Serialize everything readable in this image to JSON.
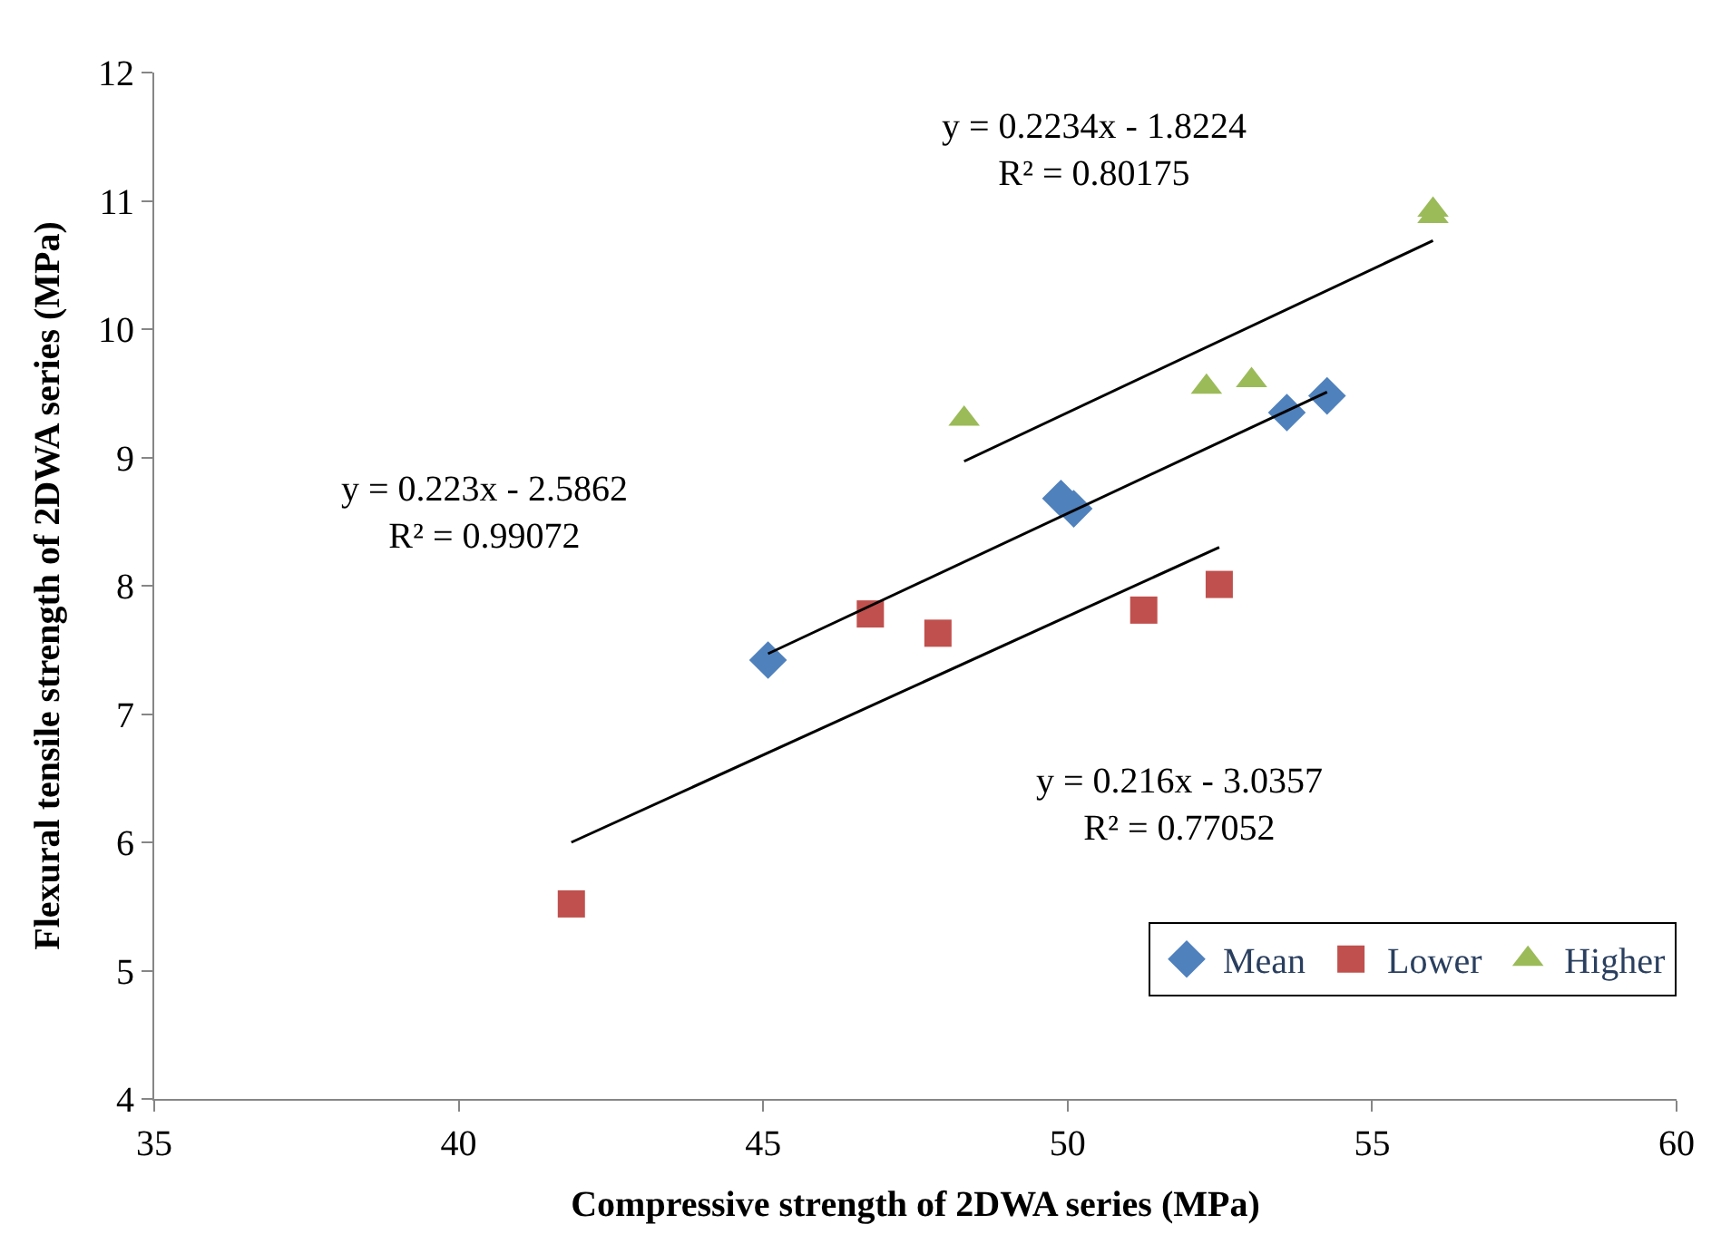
{
  "chart_data": {
    "type": "scatter",
    "xlabel": "Compressive strength of 2DWA series (MPa)",
    "ylabel": "Flexural tensile strength of 2DWA series (MPa)",
    "xlim": [
      35,
      60
    ],
    "xticks": [
      35,
      40,
      45,
      50,
      55,
      60
    ],
    "ylim": [
      4,
      12
    ],
    "yticks": [
      4,
      5,
      6,
      7,
      8,
      9,
      10,
      11,
      12
    ],
    "legend": "bottom right",
    "series": [
      {
        "name": "Mean",
        "color": "#4f81bd",
        "marker": "diamond",
        "x": [
          45.08,
          49.89,
          50.1,
          53.6,
          54.26
        ],
        "values": [
          7.42,
          8.68,
          8.6,
          9.35,
          9.48
        ]
      },
      {
        "name": "Lower",
        "color": "#c0504d",
        "marker": "square",
        "x": [
          41.85,
          46.76,
          47.87,
          51.25,
          52.49
        ],
        "values": [
          5.52,
          7.78,
          7.63,
          7.81,
          8.01
        ]
      },
      {
        "name": "Higher",
        "color": "#9bbb59",
        "marker": "triangle",
        "x": [
          48.3,
          52.28,
          53.02,
          56.0,
          56.0
        ],
        "values": [
          9.3,
          9.55,
          9.6,
          10.88,
          10.93
        ]
      },
      {
        "type": "line",
        "color": "#000000",
        "marker": "none",
        "x": [
          45.08,
          54.26
        ],
        "values": [
          7.47,
          9.51
        ]
      },
      {
        "type": "line",
        "color": "#000000",
        "marker": "none",
        "x": [
          41.85,
          52.49
        ],
        "values": [
          6.0,
          8.3
        ]
      },
      {
        "type": "line",
        "color": "#000000",
        "marker": "none",
        "x": [
          48.3,
          56.0
        ],
        "values": [
          8.97,
          10.69
        ]
      }
    ],
    "annotations": [
      "y = 0.2234x - 1.8224\nR² = 0.80175",
      "y = 0.223x - 2.5862\nR² = 0.99072",
      "y = 0.216x - 3.0357\nR² = 0.77052"
    ]
  }
}
